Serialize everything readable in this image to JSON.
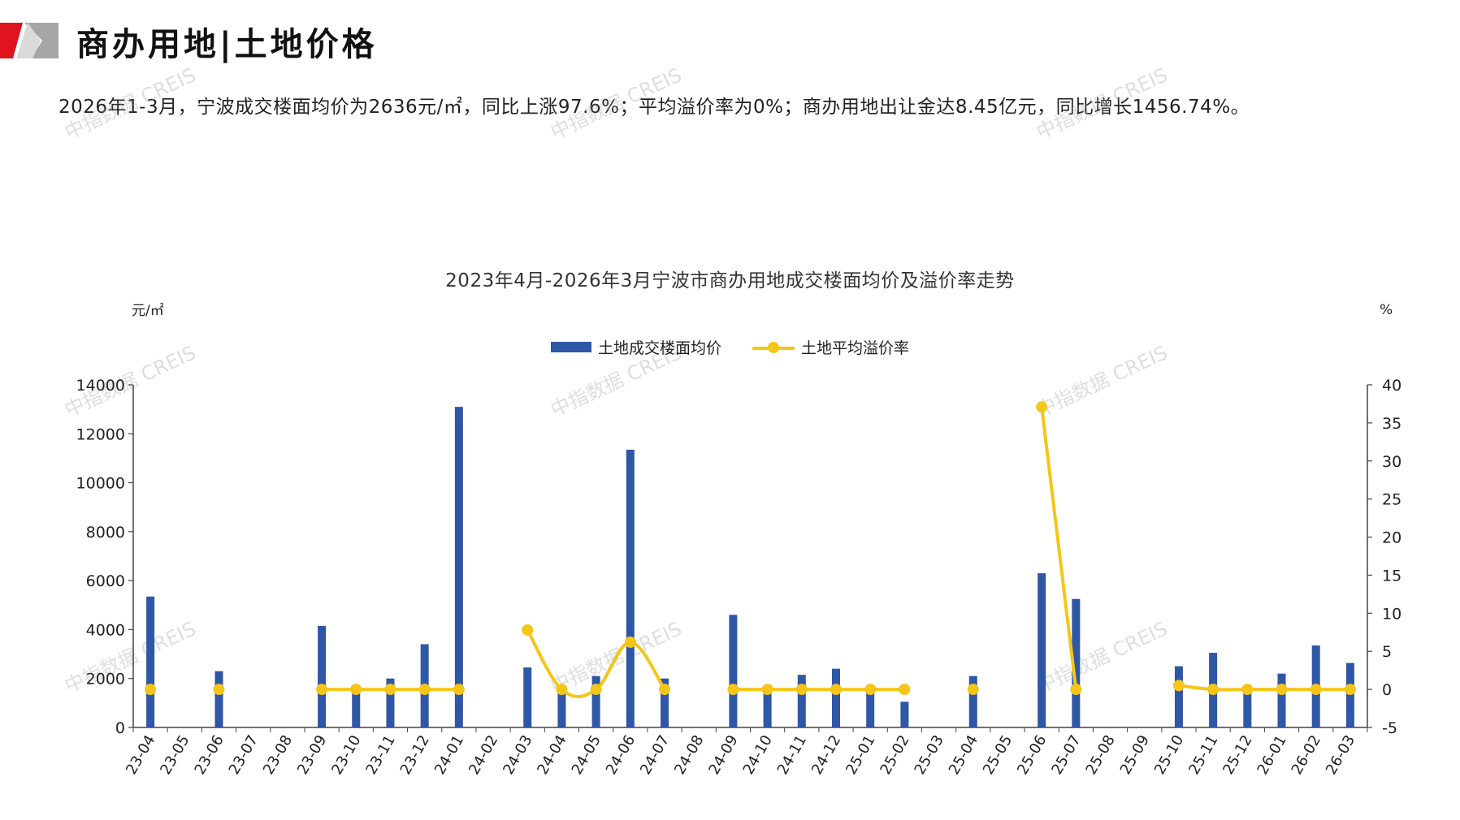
{
  "header": {
    "title": "商办用地|土地价格",
    "summary": "2026年1-3月，宁波成交楼面均价为2636元/㎡，同比上涨97.6%；平均溢价率为0%；商办用地出让金达8.45亿元，同比增长1456.74%。"
  },
  "watermark": "中指数据 CREIS",
  "colors": {
    "bar": "#2E57A6",
    "line": "#F5C518",
    "logo_red": "#E0141E",
    "logo_gray": "#9A9A9A"
  },
  "chart_data": {
    "type": "bar",
    "title": "2023年4月-2026年3月宁波市商办用地成交楼面均价及溢价率走势",
    "y_unit_left": "元/㎡",
    "y_unit_right": "%",
    "legend_position": "top-center",
    "grid": false,
    "categories": [
      "23-04",
      "23-05",
      "23-06",
      "23-07",
      "23-08",
      "23-09",
      "23-10",
      "23-11",
      "23-12",
      "24-01",
      "24-02",
      "24-03",
      "24-04",
      "24-05",
      "24-06",
      "24-07",
      "24-08",
      "24-09",
      "24-10",
      "24-11",
      "24-12",
      "25-01",
      "25-02",
      "25-03",
      "25-04",
      "25-05",
      "25-06",
      "25-07",
      "25-08",
      "25-09",
      "25-10",
      "25-11",
      "25-12",
      "26-01",
      "26-02",
      "26-03"
    ],
    "ylim_left": [
      0,
      14000
    ],
    "yticks_left": [
      0,
      2000,
      4000,
      6000,
      8000,
      10000,
      12000,
      14000
    ],
    "ylim_right": [
      -5,
      40
    ],
    "yticks_right": [
      -5,
      0,
      5,
      10,
      15,
      20,
      25,
      30,
      35,
      40
    ],
    "series": [
      {
        "name": "土地成交楼面均价",
        "kind": "bar",
        "axis": "left",
        "values": [
          5350,
          null,
          2300,
          null,
          null,
          4150,
          1600,
          2000,
          3400,
          13100,
          null,
          2450,
          1650,
          2100,
          11350,
          2000,
          null,
          4600,
          1700,
          2150,
          2400,
          1500,
          1050,
          null,
          2100,
          null,
          6300,
          5250,
          null,
          null,
          2500,
          3050,
          1700,
          2200,
          3350,
          2636
        ]
      },
      {
        "name": "土地平均溢价率",
        "kind": "line",
        "axis": "right",
        "values": [
          0,
          null,
          0,
          null,
          null,
          0,
          0,
          0,
          0,
          0,
          null,
          7.8,
          0,
          0,
          6.2,
          0,
          null,
          0,
          0,
          0,
          0,
          0,
          0,
          null,
          0,
          null,
          37.1,
          0,
          null,
          null,
          0.5,
          0,
          0,
          0,
          0,
          0
        ]
      }
    ]
  }
}
